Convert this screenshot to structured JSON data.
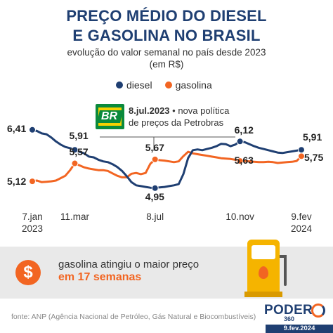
{
  "title_line1": "PREÇO MÉDIO DO DIESEL",
  "title_line2": "E GASOLINA NO BRASIL",
  "subtitle_line1": "evolução do valor semanal no país desde 2023",
  "subtitle_line2": "(em R$)",
  "legend": {
    "diesel": "diesel",
    "gasolina": "gasolina"
  },
  "colors": {
    "diesel": "#1f3f72",
    "gasolina": "#f26522",
    "title": "#1f3f72",
    "band": "#e9e9e9"
  },
  "annotation": {
    "date": "8.jul.2023",
    "line1_rest": " • nova política",
    "line2": "de preços da Petrobras",
    "logo_text": "BR",
    "logo_icon": "petrobras-logo"
  },
  "callout": {
    "line1": "gasolina atingiu o maior preço",
    "line2": "em 17 semanas",
    "badge_symbol": "$",
    "icon": "fuel-pump-icon"
  },
  "source": "fonte: ANP (Agência Nacional de Petróleo, Gás Natural e Biocombustíveis)",
  "brand": {
    "name": "PODER",
    "number": "360",
    "date": "9.fev.2024"
  },
  "chart_data": {
    "type": "line",
    "ylim": [
      4.7,
      6.6
    ],
    "grid": false,
    "legend_placement": "top-center",
    "x_ticks": [
      {
        "line1": "7.jan",
        "line2": "2023",
        "week": 0
      },
      {
        "line1": "11.mar",
        "line2": "",
        "week": 9
      },
      {
        "line1": "8.jul",
        "line2": "",
        "week": 26
      },
      {
        "line1": "10.nov",
        "line2": "",
        "week": 44
      },
      {
        "line1": "9.fev",
        "line2": "2024",
        "week": 57
      }
    ],
    "series": [
      {
        "name": "diesel",
        "values": [
          6.41,
          6.38,
          6.32,
          6.3,
          6.22,
          6.12,
          6.04,
          5.98,
          5.95,
          5.91,
          5.86,
          5.82,
          5.74,
          5.72,
          5.66,
          5.62,
          5.6,
          5.55,
          5.48,
          5.38,
          5.25,
          5.1,
          5.02,
          5.0,
          4.98,
          4.96,
          4.95,
          4.97,
          4.98,
          5.0,
          5.02,
          5.05,
          5.3,
          5.7,
          5.9,
          5.92,
          5.9,
          5.93,
          5.96,
          6.0,
          6.06,
          6.05,
          6.0,
          6.04,
          6.12,
          6.1,
          6.05,
          6.0,
          5.96,
          5.93,
          5.9,
          5.87,
          5.84,
          5.83,
          5.85,
          5.87,
          5.89,
          5.91
        ]
      },
      {
        "name": "gasolina",
        "values": [
          5.12,
          5.14,
          5.1,
          5.11,
          5.12,
          5.14,
          5.2,
          5.26,
          5.4,
          5.57,
          5.52,
          5.47,
          5.44,
          5.42,
          5.4,
          5.4,
          5.38,
          5.32,
          5.26,
          5.22,
          5.22,
          5.31,
          5.33,
          5.3,
          5.33,
          5.56,
          5.67,
          5.65,
          5.64,
          5.62,
          5.6,
          5.62,
          5.75,
          5.86,
          5.82,
          5.8,
          5.78,
          5.76,
          5.74,
          5.72,
          5.7,
          5.69,
          5.68,
          5.66,
          5.63,
          5.63,
          5.62,
          5.61,
          5.6,
          5.6,
          5.61,
          5.6,
          5.58,
          5.59,
          5.6,
          5.61,
          5.63,
          5.75
        ]
      }
    ],
    "data_labels": [
      {
        "series": "diesel",
        "index": 0,
        "text": "6,41"
      },
      {
        "series": "diesel",
        "index": 9,
        "text": "5,91"
      },
      {
        "series": "diesel",
        "index": 26,
        "text": "4,95"
      },
      {
        "series": "diesel",
        "index": 44,
        "text": "6,12"
      },
      {
        "series": "diesel",
        "index": 57,
        "text": "5,91"
      },
      {
        "series": "gasolina",
        "index": 0,
        "text": "5,12"
      },
      {
        "series": "gasolina",
        "index": 9,
        "text": "5,57"
      },
      {
        "series": "gasolina",
        "index": 26,
        "text": "5,67"
      },
      {
        "series": "gasolina",
        "index": 44,
        "text": "5,63"
      },
      {
        "series": "gasolina",
        "index": 57,
        "text": "5,75"
      }
    ]
  }
}
